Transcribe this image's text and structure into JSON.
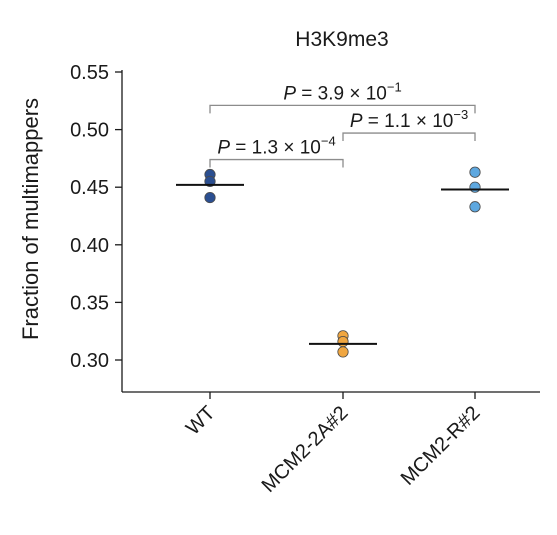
{
  "chart_data": {
    "type": "scatter",
    "title": "H3K9me3",
    "xlabel": "",
    "ylabel": "Fraction of multimappers",
    "ylim": [
      0.283,
      0.555
    ],
    "yticks": [
      0.3,
      0.35,
      0.4,
      0.45,
      0.5,
      0.55
    ],
    "ytick_labels": [
      "0.30",
      "0.35",
      "0.40",
      "0.45",
      "0.50",
      "0.55"
    ],
    "categories": [
      "WT",
      "MCM2-2A#2",
      "MCM2-R#2"
    ],
    "series": [
      {
        "category": "WT",
        "color": "#2b4f91",
        "values": [
          0.461,
          0.455,
          0.441
        ],
        "mean": 0.452
      },
      {
        "category": "MCM2-2A#2",
        "color": "#f0a640",
        "values": [
          0.321,
          0.316,
          0.307
        ],
        "mean": 0.314
      },
      {
        "category": "MCM2-R#2",
        "color": "#5ea8e0",
        "values": [
          0.463,
          0.45,
          0.433
        ],
        "mean": 0.448
      }
    ],
    "comparisons": [
      {
        "from": "WT",
        "to": "MCM2-2A#2",
        "label_prefix": "P = 1.3 × 10",
        "label_exp": "−4",
        "y": 0.474
      },
      {
        "from": "MCM2-2A#2",
        "to": "MCM2-R#2",
        "label_prefix": "P = 1.1 × 10",
        "label_exp": "−3",
        "y": 0.497
      },
      {
        "from": "WT",
        "to": "MCM2-R#2",
        "label_prefix": "P = 3.9 × 10",
        "label_exp": "−1",
        "y": 0.521
      }
    ],
    "grid": false,
    "legend": "none"
  }
}
